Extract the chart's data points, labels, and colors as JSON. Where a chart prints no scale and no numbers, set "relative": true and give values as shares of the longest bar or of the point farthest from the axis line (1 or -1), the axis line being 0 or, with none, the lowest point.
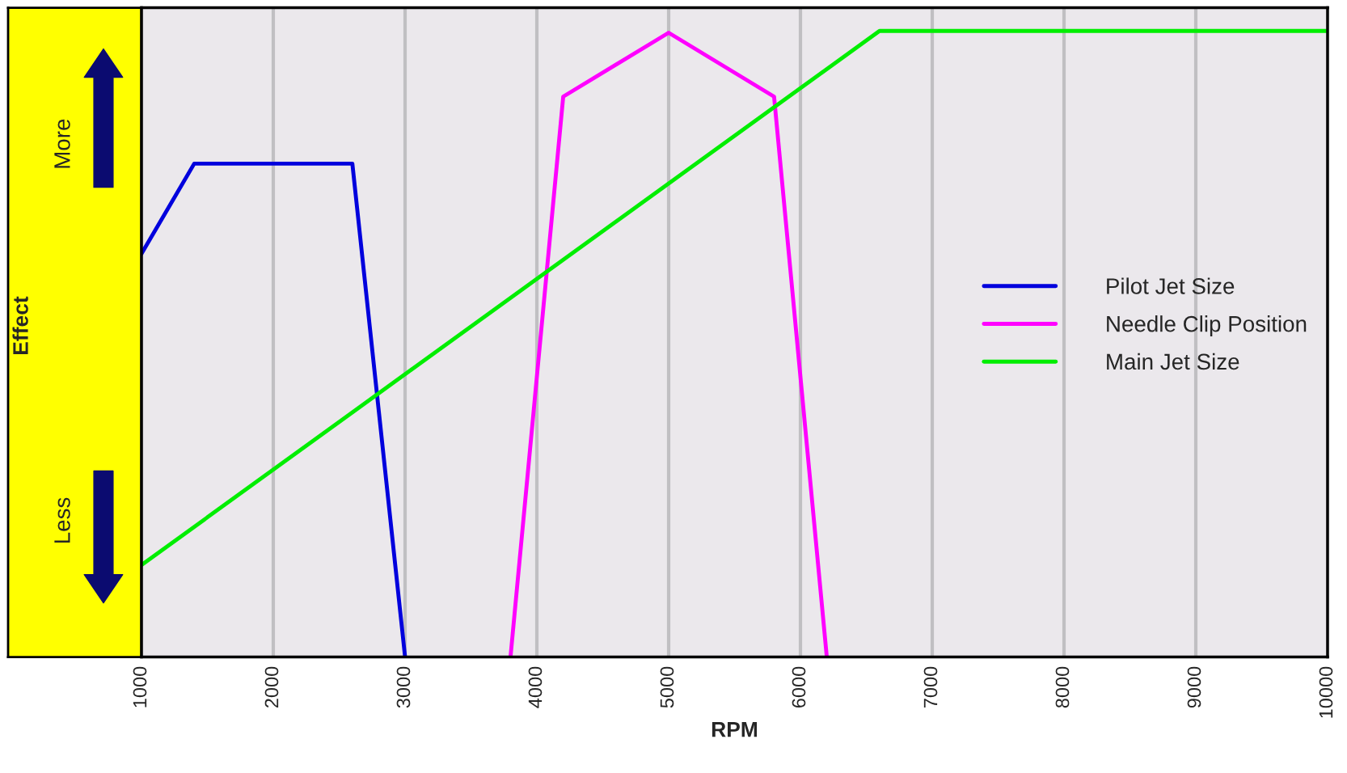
{
  "chart_data": {
    "type": "line",
    "xlabel": "RPM",
    "ylabel": "Effect",
    "relative": true,
    "annotations": [
      "More",
      "Less"
    ],
    "xlim": [
      1000,
      10000
    ],
    "xticks": [
      1000,
      2000,
      3000,
      4000,
      5000,
      6000,
      7000,
      8000,
      9000,
      10000
    ],
    "grid": "x",
    "legend": "right",
    "series": [
      {
        "name": "Pilot Jet Size",
        "color": "#0000dd",
        "x": [
          1000,
          1400,
          2600,
          3000
        ],
        "values": [
          0.644,
          0.788,
          0.788,
          0
        ]
      },
      {
        "name": "Needle Clip Position",
        "color": "#ff00ff",
        "x": [
          3800,
          4200,
          5000,
          5800,
          6200
        ],
        "values": [
          0,
          0.895,
          0.997,
          0.895,
          0
        ]
      },
      {
        "name": "Main Jet Size",
        "color": "#00ee00",
        "x": [
          1000,
          6600,
          10000
        ],
        "values": [
          0.147,
          1.0,
          1.0
        ]
      }
    ]
  }
}
